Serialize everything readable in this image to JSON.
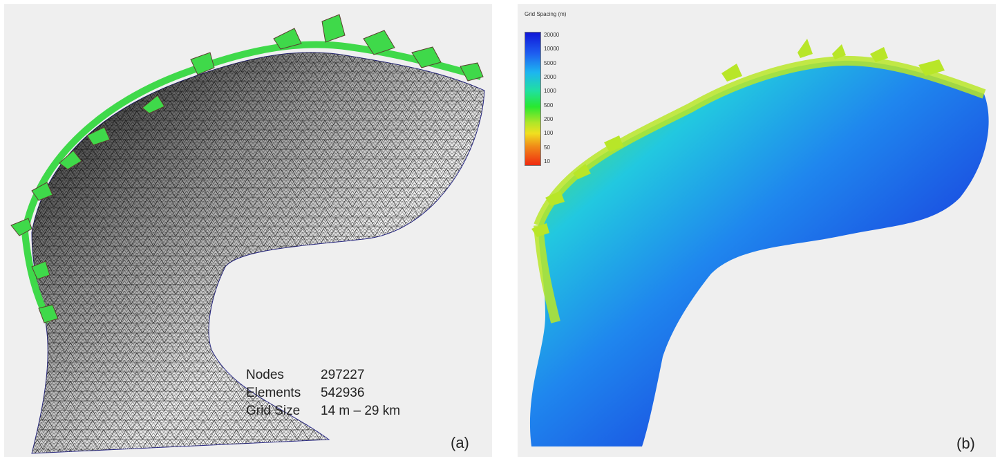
{
  "panel_a": {
    "stats": [
      {
        "label": "Nodes",
        "value": "297227"
      },
      {
        "label": "Elements",
        "value": "542936"
      },
      {
        "label": "Grid Size",
        "value": "14 m – 29 km"
      }
    ],
    "panel_label": "(a)"
  },
  "panel_b": {
    "colorbar_title": "Grid Spacing (m)",
    "colorbar_ticks": [
      "20000",
      "10000",
      "5000",
      "2000",
      "1000",
      "500",
      "200",
      "100",
      "50",
      "10"
    ],
    "panel_label": "(b)"
  },
  "colors": {
    "mesh_line": "#1a1a1a",
    "coast_green": "#3fd94a",
    "land_brown": "#7a5a3a",
    "deep_blue": "#1a3ad8",
    "mid_cyan": "#22b8e8",
    "shallow_yellowgreen": "#b8e628"
  }
}
